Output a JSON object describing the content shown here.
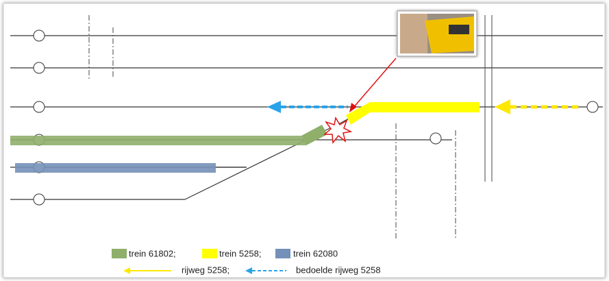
{
  "legend": {
    "trains": [
      "trein 61802;",
      "trein 5258;",
      "trein 62080"
    ],
    "routes": [
      "rijweg 5258;",
      "bedoelde rijweg 5258"
    ]
  }
}
